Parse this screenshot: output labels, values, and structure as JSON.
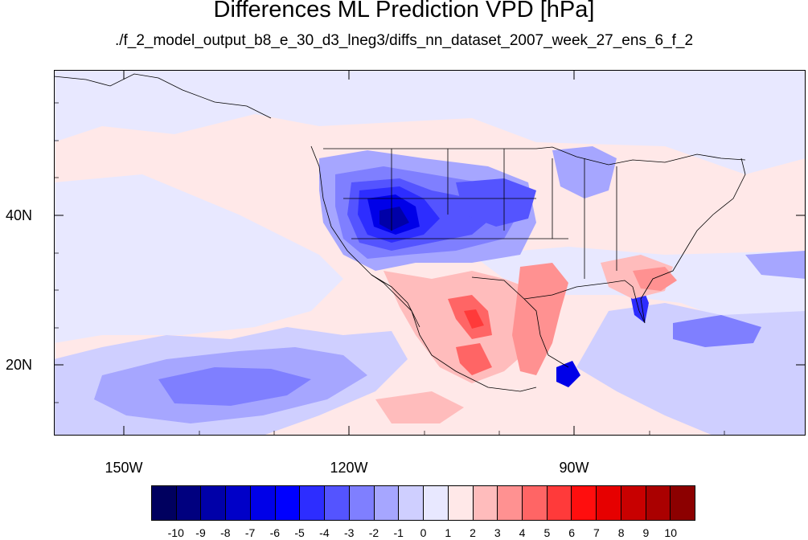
{
  "title": "Differences ML Prediction VPD [hPa]",
  "subtitle": "./f_2_model_output_b8_e_30_d3_lneg3/diffs_nn_dataset_2007_week_27_ens_6_f_2",
  "map": {
    "lon_range": [
      -160,
      -60
    ],
    "lat_range": [
      10,
      59
    ],
    "y_ticks": [
      "20N",
      "40N"
    ],
    "x_ticks": [
      "150W",
      "120W",
      "90W"
    ]
  },
  "colorbar": {
    "colors": [
      "#00005f",
      "#00007f",
      "#0000a8",
      "#0000c8",
      "#0000e8",
      "#0000ff",
      "#2d2dff",
      "#5454ff",
      "#7f7fff",
      "#a6a6ff",
      "#cfcfff",
      "#e8e8ff",
      "#ffe8e8",
      "#ffbcbc",
      "#ff9191",
      "#ff6565",
      "#ff3a3a",
      "#ff0e0e",
      "#e60000",
      "#c80000",
      "#aa0000",
      "#8c0000"
    ],
    "labels": [
      "-10",
      "-9",
      "-8",
      "-7",
      "-6",
      "-5",
      "-4",
      "-3",
      "-2",
      "-1",
      "0",
      "1",
      "2",
      "3",
      "4",
      "5",
      "6",
      "7",
      "8",
      "9",
      "10"
    ]
  }
}
